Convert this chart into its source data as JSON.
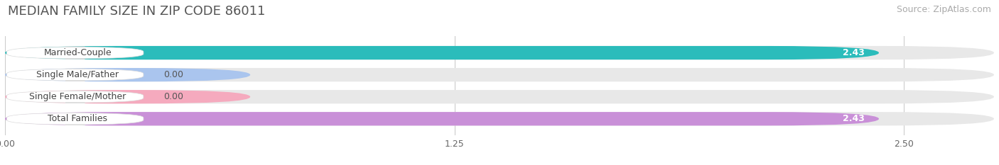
{
  "title": "MEDIAN FAMILY SIZE IN ZIP CODE 86011",
  "source": "Source: ZipAtlas.com",
  "categories": [
    "Married-Couple",
    "Single Male/Father",
    "Single Female/Mother",
    "Total Families"
  ],
  "values": [
    2.43,
    0.0,
    0.0,
    2.43
  ],
  "bar_colors": [
    "#2bbcbb",
    "#aac5ee",
    "#f5aabe",
    "#c990d8"
  ],
  "xlim_max": 2.75,
  "xticks": [
    0.0,
    1.25,
    2.5
  ],
  "xtick_labels": [
    "0.00",
    "1.25",
    "2.50"
  ],
  "background_color": "#ffffff",
  "bar_background_color": "#e8e8e8",
  "title_fontsize": 13,
  "source_fontsize": 9,
  "label_fontsize": 9,
  "value_fontsize": 9,
  "bar_height": 0.62,
  "label_box_color": "#ffffff",
  "grid_color": "#cccccc"
}
